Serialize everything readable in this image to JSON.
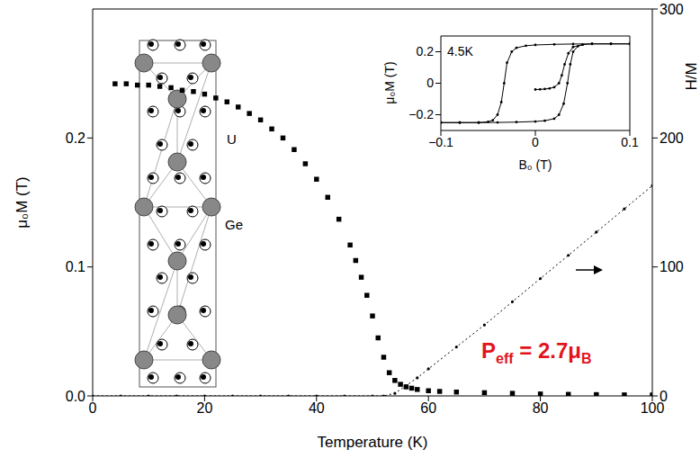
{
  "chart_data": [
    {
      "type": "scatter",
      "x_label": "Temperature (K)",
      "y_label": "μ₀M (T)",
      "y2_label": "H/M",
      "xlim": [
        0,
        100
      ],
      "xticks": [
        0,
        20,
        40,
        60,
        80,
        100
      ],
      "ylim": [
        0,
        0.3
      ],
      "yticks": [
        {
          "value": 0,
          "label": "0.0"
        },
        0.1,
        0.2
      ],
      "y2lim": [
        0,
        300
      ],
      "y2ticks": [
        0,
        100,
        200,
        300
      ],
      "annotation": [
        "P",
        "eff",
        " = 2.7μ",
        "B"
      ],
      "series": [
        {
          "marker": "square",
          "color": "#000000",
          "x": [
            4,
            6,
            8,
            10,
            12,
            14,
            16,
            18,
            20,
            22,
            24,
            26,
            28,
            30,
            32,
            34,
            36,
            38,
            40,
            42,
            44,
            46,
            47,
            48,
            49,
            50,
            51,
            52,
            53,
            54,
            55,
            56,
            57,
            58,
            60,
            62,
            65,
            70,
            75,
            80,
            85,
            90,
            95,
            100
          ],
          "values": [
            0.242,
            0.242,
            0.241,
            0.241,
            0.24,
            0.239,
            0.237,
            0.236,
            0.234,
            0.231,
            0.228,
            0.224,
            0.219,
            0.214,
            0.207,
            0.2,
            0.191,
            0.18,
            0.168,
            0.154,
            0.137,
            0.117,
            0.105,
            0.092,
            0.078,
            0.062,
            0.045,
            0.03,
            0.018,
            0.012,
            0.009,
            0.007,
            0.006,
            0.005,
            0.004,
            0.0035,
            0.003,
            0.0025,
            0.002,
            0.0015,
            0.0012,
            0.001,
            0.0008,
            0.0007
          ]
        },
        {
          "type": "line",
          "marker": "circle",
          "line_style": "dotted",
          "color": "#000000",
          "axis": "y2",
          "x": [
            0,
            5,
            10,
            15,
            20,
            25,
            30,
            35,
            40,
            45,
            50,
            52,
            54,
            56,
            58,
            60,
            65,
            70,
            75,
            80,
            85,
            90,
            95,
            100
          ],
          "values": [
            0,
            0,
            0,
            0,
            0,
            0,
            0,
            0,
            0,
            0,
            0,
            0,
            2,
            8,
            14,
            21,
            38,
            55,
            73,
            91,
            109,
            127,
            145,
            163
          ]
        }
      ]
    },
    {
      "type": "line",
      "annotation": "4.5K",
      "x_label": "B₀ (T)",
      "y_label": "μ₀M (T)",
      "xlim": [
        -0.1,
        0.1
      ],
      "xticks": [
        {
          "value": -0.1,
          "label": "−0.1"
        },
        0,
        0.1
      ],
      "ylim": [
        -0.3,
        0.3
      ],
      "yticks": [
        {
          "value": -0.2,
          "label": "−0.2"
        },
        0,
        0.2
      ],
      "series": [
        {
          "marker": "circle",
          "line_style": "solid",
          "color": "#000000",
          "x": [
            0.1,
            0.08,
            0.06,
            0.04,
            0.02,
            0,
            -0.01,
            -0.02,
            -0.025,
            -0.03,
            -0.033,
            -0.036,
            -0.04,
            -0.045,
            -0.05,
            -0.06,
            -0.08,
            -0.1
          ],
          "values": [
            0.25,
            0.25,
            0.25,
            0.249,
            0.247,
            0.243,
            0.238,
            0.225,
            0.2,
            0.13,
            0,
            -0.12,
            -0.2,
            -0.235,
            -0.245,
            -0.25,
            -0.25,
            -0.25
          ]
        },
        {
          "marker": "circle",
          "line_style": "solid",
          "color": "#000000",
          "x": [
            -0.1,
            -0.08,
            -0.06,
            -0.04,
            -0.02,
            0,
            0.01,
            0.02,
            0.025,
            0.03,
            0.034,
            0.037,
            0.04,
            0.045,
            0.05,
            0.06,
            0.08,
            0.1
          ],
          "values": [
            -0.25,
            -0.25,
            -0.25,
            -0.249,
            -0.247,
            -0.243,
            -0.238,
            -0.225,
            -0.2,
            -0.13,
            0,
            0.12,
            0.2,
            0.235,
            0.245,
            0.25,
            0.25,
            0.25
          ]
        },
        {
          "marker": "circle",
          "line_style": "solid",
          "color": "#000000",
          "x": [
            0,
            0.005,
            0.01,
            0.015,
            0.02,
            0.025,
            0.028,
            0.031,
            0.035,
            0.04,
            0.05
          ],
          "values": [
            -0.04,
            -0.039,
            -0.037,
            -0.033,
            -0.025,
            0,
            0.05,
            0.12,
            0.19,
            0.23,
            0.245
          ]
        }
      ]
    }
  ],
  "structure": {
    "labels": [
      "U",
      "Ge"
    ]
  }
}
